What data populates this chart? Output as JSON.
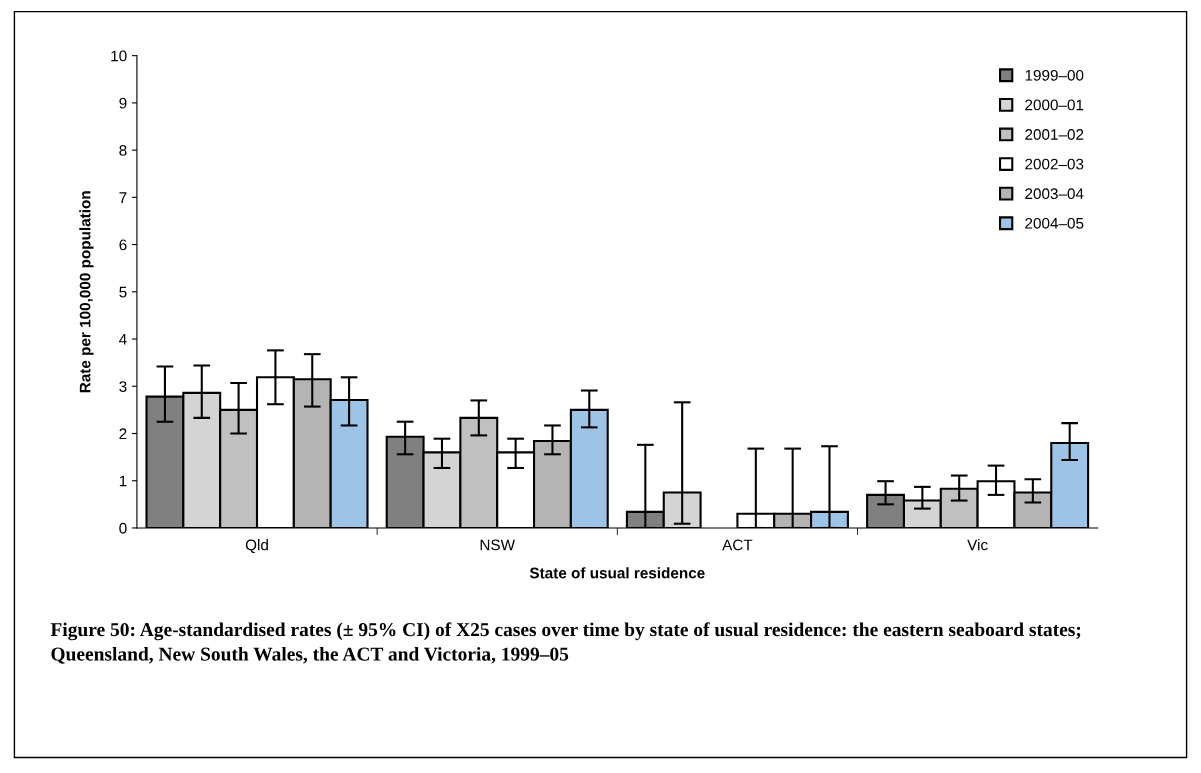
{
  "chart_data": {
    "type": "bar",
    "xlabel": "State of usual residence",
    "ylabel": "Rate per 100,000 population",
    "categories": [
      "Qld",
      "NSW",
      "ACT",
      "Vic"
    ],
    "series": [
      {
        "name": "1999–00",
        "color": "#808080",
        "values": [
          2.78,
          1.93,
          0.34,
          0.7
        ],
        "errors": [
          [
            2.25,
            3.42
          ],
          [
            1.56,
            2.25
          ],
          [
            0,
            1.76
          ],
          [
            0.5,
            0.99
          ]
        ]
      },
      {
        "name": "2000–01",
        "color": "#d4d4d4",
        "values": [
          2.86,
          1.6,
          0.75,
          0.58
        ],
        "errors": [
          [
            2.33,
            3.44
          ],
          [
            1.27,
            1.89
          ],
          [
            0.09,
            2.66
          ],
          [
            0.41,
            0.87
          ]
        ]
      },
      {
        "name": "2001–02",
        "color": "#c0c0c0",
        "values": [
          2.5,
          2.33,
          null,
          0.83
        ],
        "errors": [
          [
            2.0,
            3.07
          ],
          [
            1.96,
            2.7
          ],
          null,
          [
            0.58,
            1.11
          ]
        ]
      },
      {
        "name": "2002–03",
        "color": "#ffffff",
        "values": [
          3.19,
          1.6,
          0.3,
          0.99
        ],
        "errors": [
          [
            2.62,
            3.76
          ],
          [
            1.27,
            1.89
          ],
          [
            0,
            1.68
          ],
          [
            0.7,
            1.32
          ]
        ]
      },
      {
        "name": "2003–04",
        "color": "#b4b4b4",
        "values": [
          3.15,
          1.84,
          0.3,
          0.75
        ],
        "errors": [
          [
            2.57,
            3.68
          ],
          [
            1.56,
            2.17
          ],
          [
            0,
            1.68
          ],
          [
            0.54,
            1.03
          ]
        ]
      },
      {
        "name": "2004–05",
        "color": "#9dc3e6",
        "values": [
          2.71,
          2.5,
          0.34,
          1.8
        ],
        "errors": [
          [
            2.17,
            3.19
          ],
          [
            2.13,
            2.91
          ],
          [
            0,
            1.73
          ],
          [
            1.44,
            2.22
          ]
        ]
      }
    ],
    "ylim": [
      0,
      10
    ],
    "yticks": [
      0,
      1,
      2,
      3,
      4,
      5,
      6,
      7,
      8,
      9,
      10
    ],
    "grid": false,
    "legend": "top right",
    "annotations": [
      "Figure 50: Age-standardised rates (± 95% CI) of X25 cases over time by state of usual residence: the eastern seaboard states; Queensland, New South Wales, the ACT and Victoria, 1999–05"
    ]
  }
}
